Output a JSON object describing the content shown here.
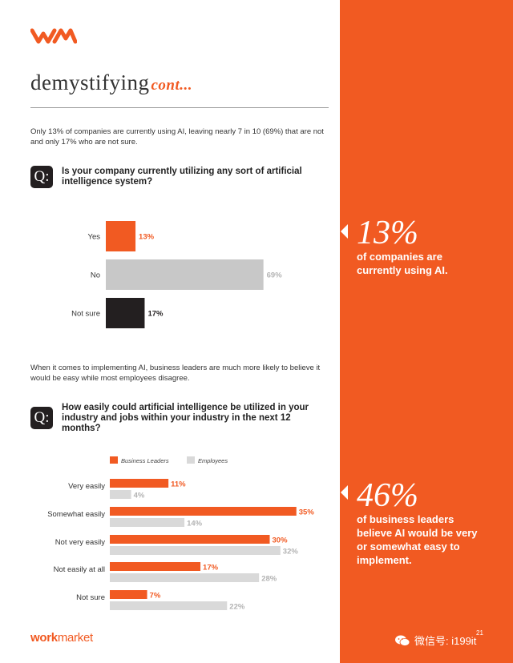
{
  "page": {
    "heading": "demystifying",
    "heading_suffix": "cont...",
    "intro_1": "Only 13% of companies are currently using AI, leaving nearly 7 in 10 (69%) that are not and only 17% who are not sure.",
    "question_1_badge": "Q:",
    "question_1": "Is your company currently utilizing any sort of artificial intelligence system?",
    "intro_2": "When it comes to implementing AI, business leaders are much more likely to believe it would be easy while most employees disagree.",
    "question_2_badge": "Q:",
    "question_2": "How easily could artificial intelligence be utilized in your industry and jobs within your industry in the next 12 months?",
    "footer_brand_1": "work",
    "footer_brand_2": "market",
    "watermark_text": "微信号: i199it",
    "page_number": "21"
  },
  "callouts": [
    {
      "value": "13%",
      "text": "of companies are currently using AI."
    },
    {
      "value": "46%",
      "text": "of business leaders believe AI would be very or somewhat easy to implement."
    }
  ],
  "colors": {
    "accent": "#f15a22",
    "gray": "#c8c8c8",
    "dark": "#231f20",
    "light_gray": "#d9d9d9"
  },
  "chart_data": [
    {
      "type": "bar",
      "orientation": "horizontal",
      "categories": [
        "Yes",
        "No",
        "Not sure"
      ],
      "values": [
        13,
        69,
        17
      ],
      "value_labels": [
        "13%",
        "69%",
        "17%"
      ],
      "bar_colors": [
        "#f15a22",
        "#c8c8c8",
        "#231f20"
      ],
      "label_colors": [
        "#f15a22",
        "#b3b3b3",
        "#231f20"
      ]
    },
    {
      "type": "bar",
      "orientation": "horizontal",
      "categories": [
        "Very easily",
        "Somewhat easily",
        "Not very easily",
        "Not easily at all",
        "Not sure"
      ],
      "series": [
        {
          "name": "Business Leaders",
          "values": [
            11,
            35,
            30,
            17,
            7
          ],
          "labels": [
            "11%",
            "35%",
            "30%",
            "17%",
            "7%"
          ],
          "color": "#f15a22"
        },
        {
          "name": "Employees",
          "values": [
            4,
            14,
            32,
            28,
            22
          ],
          "labels": [
            "4%",
            "14%",
            "32%",
            "28%",
            "22%"
          ],
          "color": "#d9d9d9"
        }
      ],
      "legend_position": "top-left"
    }
  ]
}
